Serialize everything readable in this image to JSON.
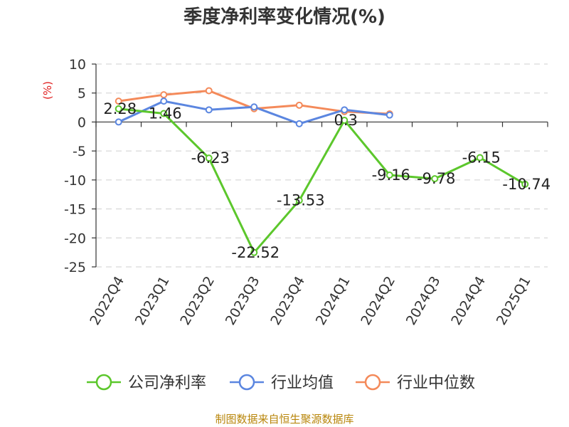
{
  "chart_data": {
    "type": "line",
    "title": "季度净利率变化情况(%)",
    "ylabel": "(%)",
    "ylim": [
      -25,
      10
    ],
    "yticks": [
      10,
      5,
      0,
      -5,
      -10,
      -15,
      -20,
      -25
    ],
    "categories": [
      "2022Q4",
      "2023Q1",
      "2023Q2",
      "2023Q3",
      "2023Q4",
      "2024Q1",
      "2024Q2",
      "2024Q3",
      "2024Q4",
      "2025Q1"
    ],
    "grid": true,
    "legend_position": "bottom",
    "series": [
      {
        "name": "公司净利率",
        "color": "#5cc72c",
        "values": [
          2.28,
          1.46,
          -6.23,
          -22.52,
          -13.53,
          0.3,
          -9.16,
          -9.78,
          -6.15,
          -10.74
        ],
        "labels": [
          "2.28",
          "1.46",
          "-6.23",
          "-22.52",
          "-13.53",
          "0.3",
          "-9.16",
          "-9.78",
          "-6.15",
          "-10.74"
        ]
      },
      {
        "name": "行业均值",
        "color": "#5b86e0",
        "values": [
          0.0,
          3.6,
          2.1,
          2.6,
          -0.3,
          2.1,
          1.2,
          null,
          null,
          null
        ]
      },
      {
        "name": "行业中位数",
        "color": "#f48a5a",
        "values": [
          3.6,
          4.7,
          5.4,
          2.3,
          2.9,
          1.8,
          1.4,
          null,
          null,
          null
        ]
      }
    ]
  },
  "source": "制图数据来自恒生聚源数据库"
}
